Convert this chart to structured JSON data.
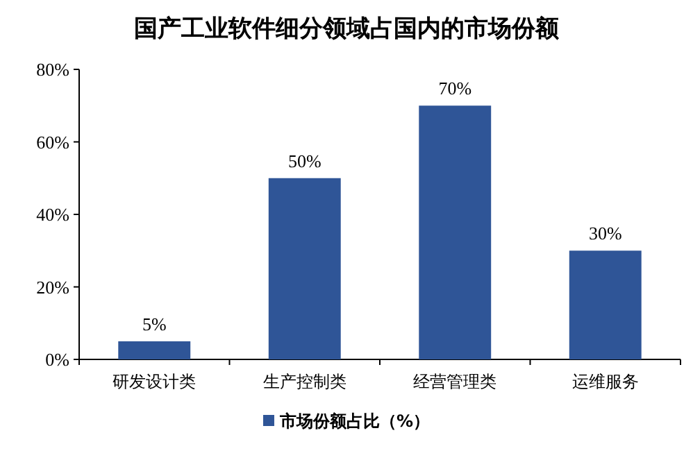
{
  "chart_data": {
    "type": "bar",
    "title": "国产工业软件细分领域占国内的市场份额",
    "categories": [
      "研发设计类",
      "生产控制类",
      "经营管理类",
      "运维服务"
    ],
    "series": [
      {
        "name": "市场份额占比（%）",
        "color": "#2f5597",
        "values": [
          5,
          50,
          70,
          30
        ],
        "value_labels": [
          "5%",
          "50%",
          "70%",
          "30%"
        ]
      }
    ],
    "ylim": [
      0,
      80
    ],
    "yticks": [
      {
        "value": 0,
        "label": "0%"
      },
      {
        "value": 20,
        "label": "20%"
      },
      {
        "value": 40,
        "label": "40%"
      },
      {
        "value": 60,
        "label": "60%"
      },
      {
        "value": 80,
        "label": "80%"
      }
    ],
    "legend": "bottom"
  }
}
